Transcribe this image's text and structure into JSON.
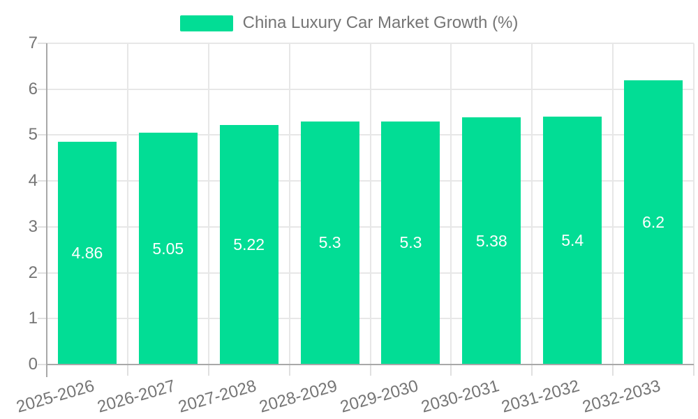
{
  "legend": {
    "label": "China Luxury Car Market Growth (%)",
    "swatch_color": "#02DD95"
  },
  "chart_data": {
    "type": "bar",
    "title": "China Luxury Car Market Growth (%)",
    "categories": [
      "2025-2026",
      "2026-2027",
      "2027-2028",
      "2028-2029",
      "2029-2030",
      "2030-2031",
      "2031-2032",
      "2032-2033"
    ],
    "series": [
      {
        "name": "China Luxury Car Market Growth (%)",
        "values": [
          4.86,
          5.05,
          5.22,
          5.3,
          5.3,
          5.38,
          5.4,
          6.2
        ],
        "color": "#02DD95"
      }
    ],
    "value_labels": [
      "4.86",
      "5.05",
      "5.22",
      "5.3",
      "5.3",
      "5.38",
      "5.4",
      "6.2"
    ],
    "xlabel": "",
    "ylabel": "",
    "ylim": [
      0,
      7
    ],
    "yticks": [
      "0",
      "1",
      "2",
      "3",
      "4",
      "5",
      "6",
      "7"
    ],
    "grid": true,
    "legend_position": "top",
    "value_label_color": "#ffffff"
  },
  "colors": {
    "bar": "#02DD95",
    "grid": "#E7E7E7",
    "tick": "#E0E0E0",
    "axis": "#A8A8A8",
    "text": "#757575",
    "value_text": "#FFFFFF",
    "background": "#FFFFFF"
  }
}
